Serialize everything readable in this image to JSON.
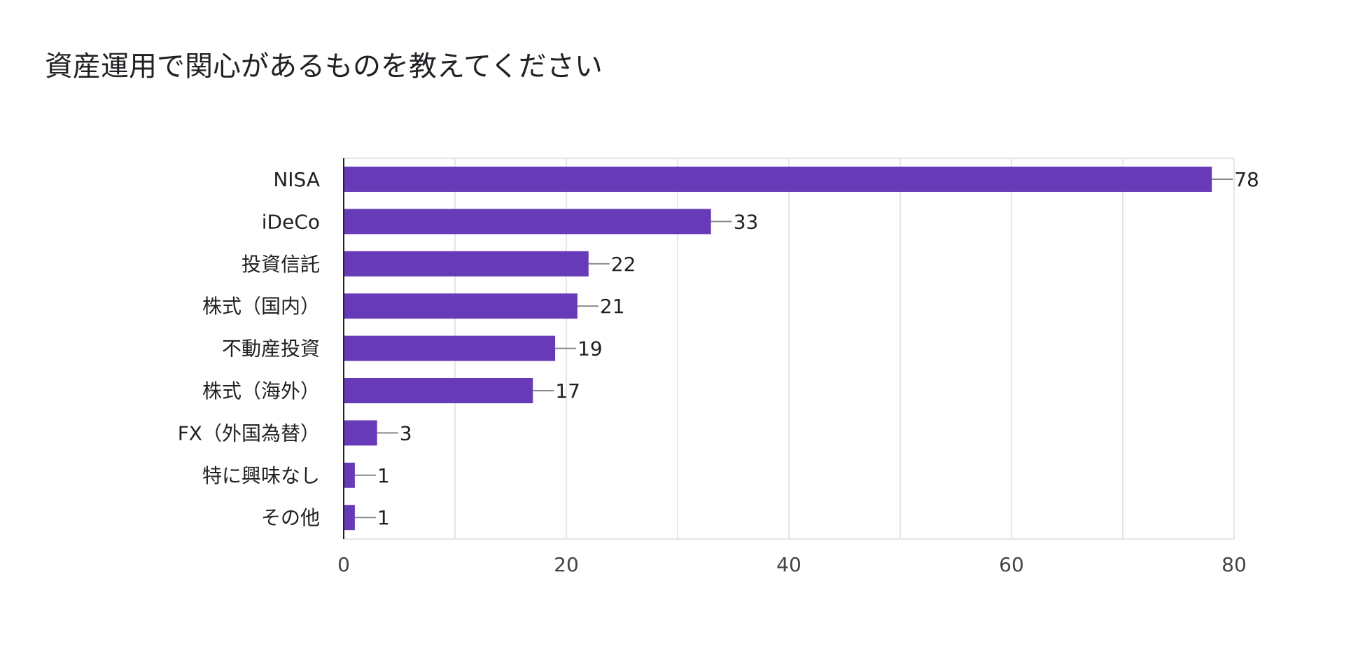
{
  "chart_data": {
    "type": "bar",
    "orientation": "horizontal",
    "title": "資産運用で関心があるものを教えてください",
    "categories": [
      "NISA",
      "iDeCo",
      "投資信託",
      "株式（国内）",
      "不動産投資",
      "株式（海外）",
      "FX（外国為替）",
      "特に興味なし",
      "その他"
    ],
    "values": [
      78,
      33,
      22,
      21,
      19,
      17,
      3,
      1,
      1
    ],
    "data_labels": [
      "78",
      "33",
      "22",
      "21",
      "19",
      "17",
      "3",
      "1",
      "1"
    ],
    "xlim": [
      0,
      80
    ],
    "xticks": [
      0,
      20,
      40,
      60,
      80
    ],
    "xtick_labels": [
      "0",
      "20",
      "40",
      "60",
      "80"
    ],
    "grid": true,
    "legend": "none",
    "colors": {
      "bar": "#673ab7",
      "grid": "#e6e6e6",
      "axis": "#202124",
      "label": "#202124",
      "tick": "#444444",
      "leader": "#888888"
    }
  }
}
